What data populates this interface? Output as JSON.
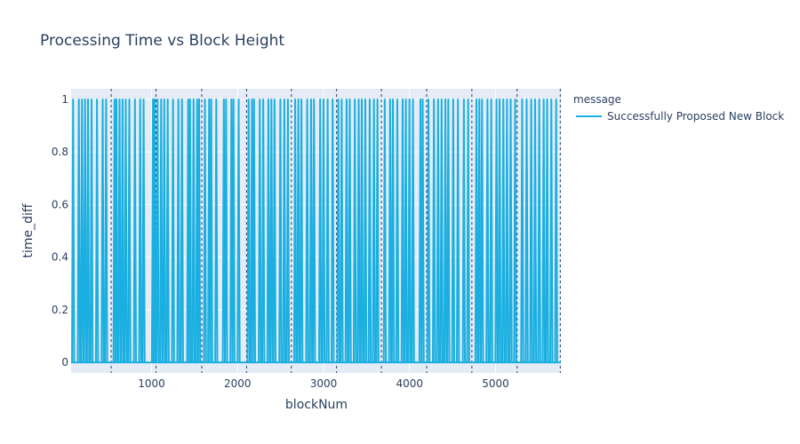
{
  "chart_data": {
    "type": "line",
    "title": "Processing Time vs Block Height",
    "xlabel": "blockNum",
    "ylabel": "time_diff",
    "xlim": [
      65,
      5760
    ],
    "ylim": [
      -0.04,
      1.04
    ],
    "x_ticks": [
      1000,
      2000,
      3000,
      4000,
      5000
    ],
    "x_tick_labels": [
      "1000",
      "2000",
      "3000",
      "4000",
      "5000"
    ],
    "y_ticks": [
      0,
      0.2,
      0.4,
      0.6,
      0.8,
      1
    ],
    "y_tick_labels": [
      "0",
      "0.2",
      "0.4",
      "0.6",
      "0.8",
      "1"
    ],
    "grid": true,
    "legend_title": "message",
    "legend_placement": "top-right",
    "series": [
      {
        "name": "Successfully Proposed New Block",
        "color": "#1aafe0",
        "baseline": 0,
        "peak": 1,
        "spike_x": [
          88,
          155,
          192,
          227,
          262,
          303,
          366,
          432,
          472,
          570,
          592,
          628,
          663,
          700,
          742,
          807,
          868,
          908,
          1017,
          1036,
          1070,
          1112,
          1148,
          1188,
          1250,
          1312,
          1354,
          1426,
          1448,
          1489,
          1530,
          1553,
          1621,
          1670,
          1694,
          1753,
          1841,
          1867,
          1929,
          1953,
          2013,
          2129,
          2168,
          2192,
          2259,
          2299,
          2359,
          2394,
          2430,
          2498,
          2544,
          2586,
          2670,
          2707,
          2743,
          2810,
          2855,
          2889,
          2961,
          3000,
          3048,
          3106,
          3172,
          3211,
          3268,
          3305,
          3364,
          3409,
          3445,
          3486,
          3537,
          3586,
          3627,
          3712,
          3774,
          3807,
          3858,
          3920,
          3957,
          3999,
          4040,
          4127,
          4153,
          4220,
          4284,
          4332,
          4373,
          4417,
          4451,
          4508,
          4563,
          4632,
          4682,
          4778,
          4811,
          4843,
          4906,
          4950,
          5011,
          5047,
          5091,
          5133,
          5176,
          5228,
          5310,
          5362,
          5415,
          5460,
          5508,
          5560,
          5600,
          5649,
          5705
        ]
      }
    ],
    "vertical_markers_x": [
      531,
      1052,
      1584,
      2105,
      2626,
      3152,
      3673,
      4199,
      4725,
      5251,
      5753
    ]
  }
}
